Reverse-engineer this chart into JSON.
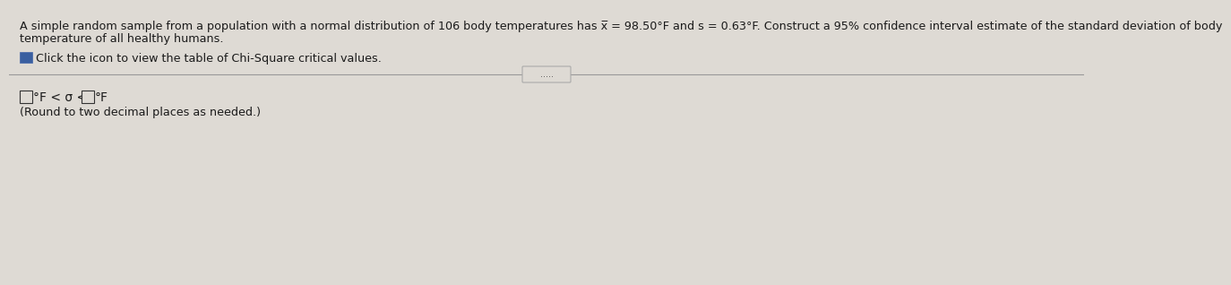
{
  "background_color": "#dedad4",
  "line1": "A simple random sample from a population with a normal distribution of 106 body temperatures has x̅ = 98.50°F and s = 0.63°F. Construct a 95% confidence interval estimate of the standard deviation of body",
  "line2": "temperature of all healthy humans.",
  "icon_text": "Click the icon to view the table of Chi-Square critical values.",
  "button_dots": ".....",
  "note_line": "(Round to two decimal places as needed.)",
  "text_color": "#1a1a1a",
  "icon_color": "#3a5fa0",
  "divider_color": "#999999",
  "box_color": "#333333",
  "font_size_main": 9.2,
  "font_size_answer": 10.0,
  "font_size_note": 9.2,
  "font_size_dots": 7.0
}
